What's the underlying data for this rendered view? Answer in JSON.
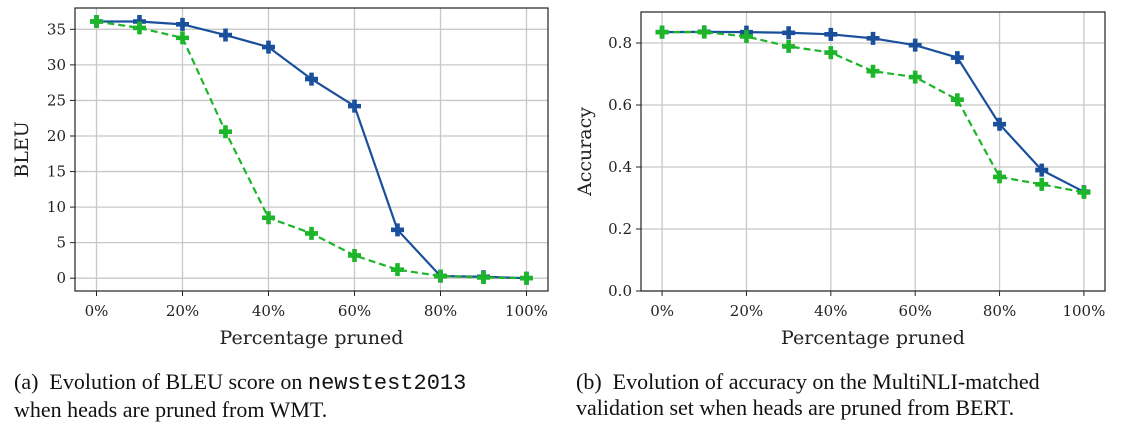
{
  "chart_data": [
    {
      "type": "line",
      "title": "",
      "xlabel": "Percentage pruned",
      "ylabel": "BLEU",
      "x": [
        0,
        10,
        20,
        30,
        40,
        50,
        60,
        70,
        80,
        90,
        100
      ],
      "xticks": [
        0,
        20,
        40,
        60,
        80,
        100
      ],
      "xtick_labels": [
        "0%",
        "20%",
        "40%",
        "60%",
        "80%",
        "100%"
      ],
      "yticks": [
        0,
        5,
        10,
        15,
        20,
        25,
        30,
        35
      ],
      "ytick_labels": [
        "0",
        "5",
        "10",
        "15",
        "20",
        "25",
        "30",
        "35"
      ],
      "xlim": [
        -5,
        105
      ],
      "ylim": [
        -1.8,
        38
      ],
      "grid": true,
      "series": [
        {
          "name": "blue-solid",
          "color": "#1a4f9c",
          "dash": false,
          "values": [
            36.1,
            36.1,
            35.7,
            34.2,
            32.5,
            28.0,
            24.2,
            6.8,
            0.3,
            0.2,
            0.0
          ]
        },
        {
          "name": "green-dashed",
          "color": "#1db52a",
          "dash": true,
          "values": [
            36.1,
            35.2,
            33.8,
            20.6,
            8.5,
            6.3,
            3.2,
            1.2,
            0.3,
            0.1,
            0.0
          ]
        }
      ],
      "caption_label": "(a)",
      "caption_line1_pre": "Evolution of BLEU score on",
      "caption_line1_code": "newstest2013",
      "caption_line2": "when heads are pruned from WMT."
    },
    {
      "type": "line",
      "title": "",
      "xlabel": "Percentage pruned",
      "ylabel": "Accuracy",
      "x": [
        0,
        10,
        20,
        30,
        40,
        50,
        60,
        70,
        80,
        90,
        100
      ],
      "xticks": [
        0,
        20,
        40,
        60,
        80,
        100
      ],
      "xtick_labels": [
        "0%",
        "20%",
        "40%",
        "60%",
        "80%",
        "100%"
      ],
      "yticks": [
        0.0,
        0.2,
        0.4,
        0.6,
        0.8
      ],
      "ytick_labels": [
        "0.0",
        "0.2",
        "0.4",
        "0.6",
        "0.8"
      ],
      "xlim": [
        -5,
        105
      ],
      "ylim": [
        0.0,
        0.9
      ],
      "grid": true,
      "series": [
        {
          "name": "blue-solid",
          "color": "#1a4f9c",
          "dash": false,
          "values": [
            0.835,
            0.836,
            0.835,
            0.833,
            0.828,
            0.815,
            0.793,
            0.753,
            0.538,
            0.39,
            0.32
          ]
        },
        {
          "name": "green-dashed",
          "color": "#1db52a",
          "dash": true,
          "values": [
            0.835,
            0.835,
            0.821,
            0.789,
            0.769,
            0.709,
            0.69,
            0.617,
            0.368,
            0.344,
            0.318
          ]
        }
      ],
      "caption_label": "(b)",
      "caption_line1_pre": "Evolution of accuracy on the MultiNLI-matched",
      "caption_line2": "validation set when heads are pruned from BERT."
    }
  ]
}
